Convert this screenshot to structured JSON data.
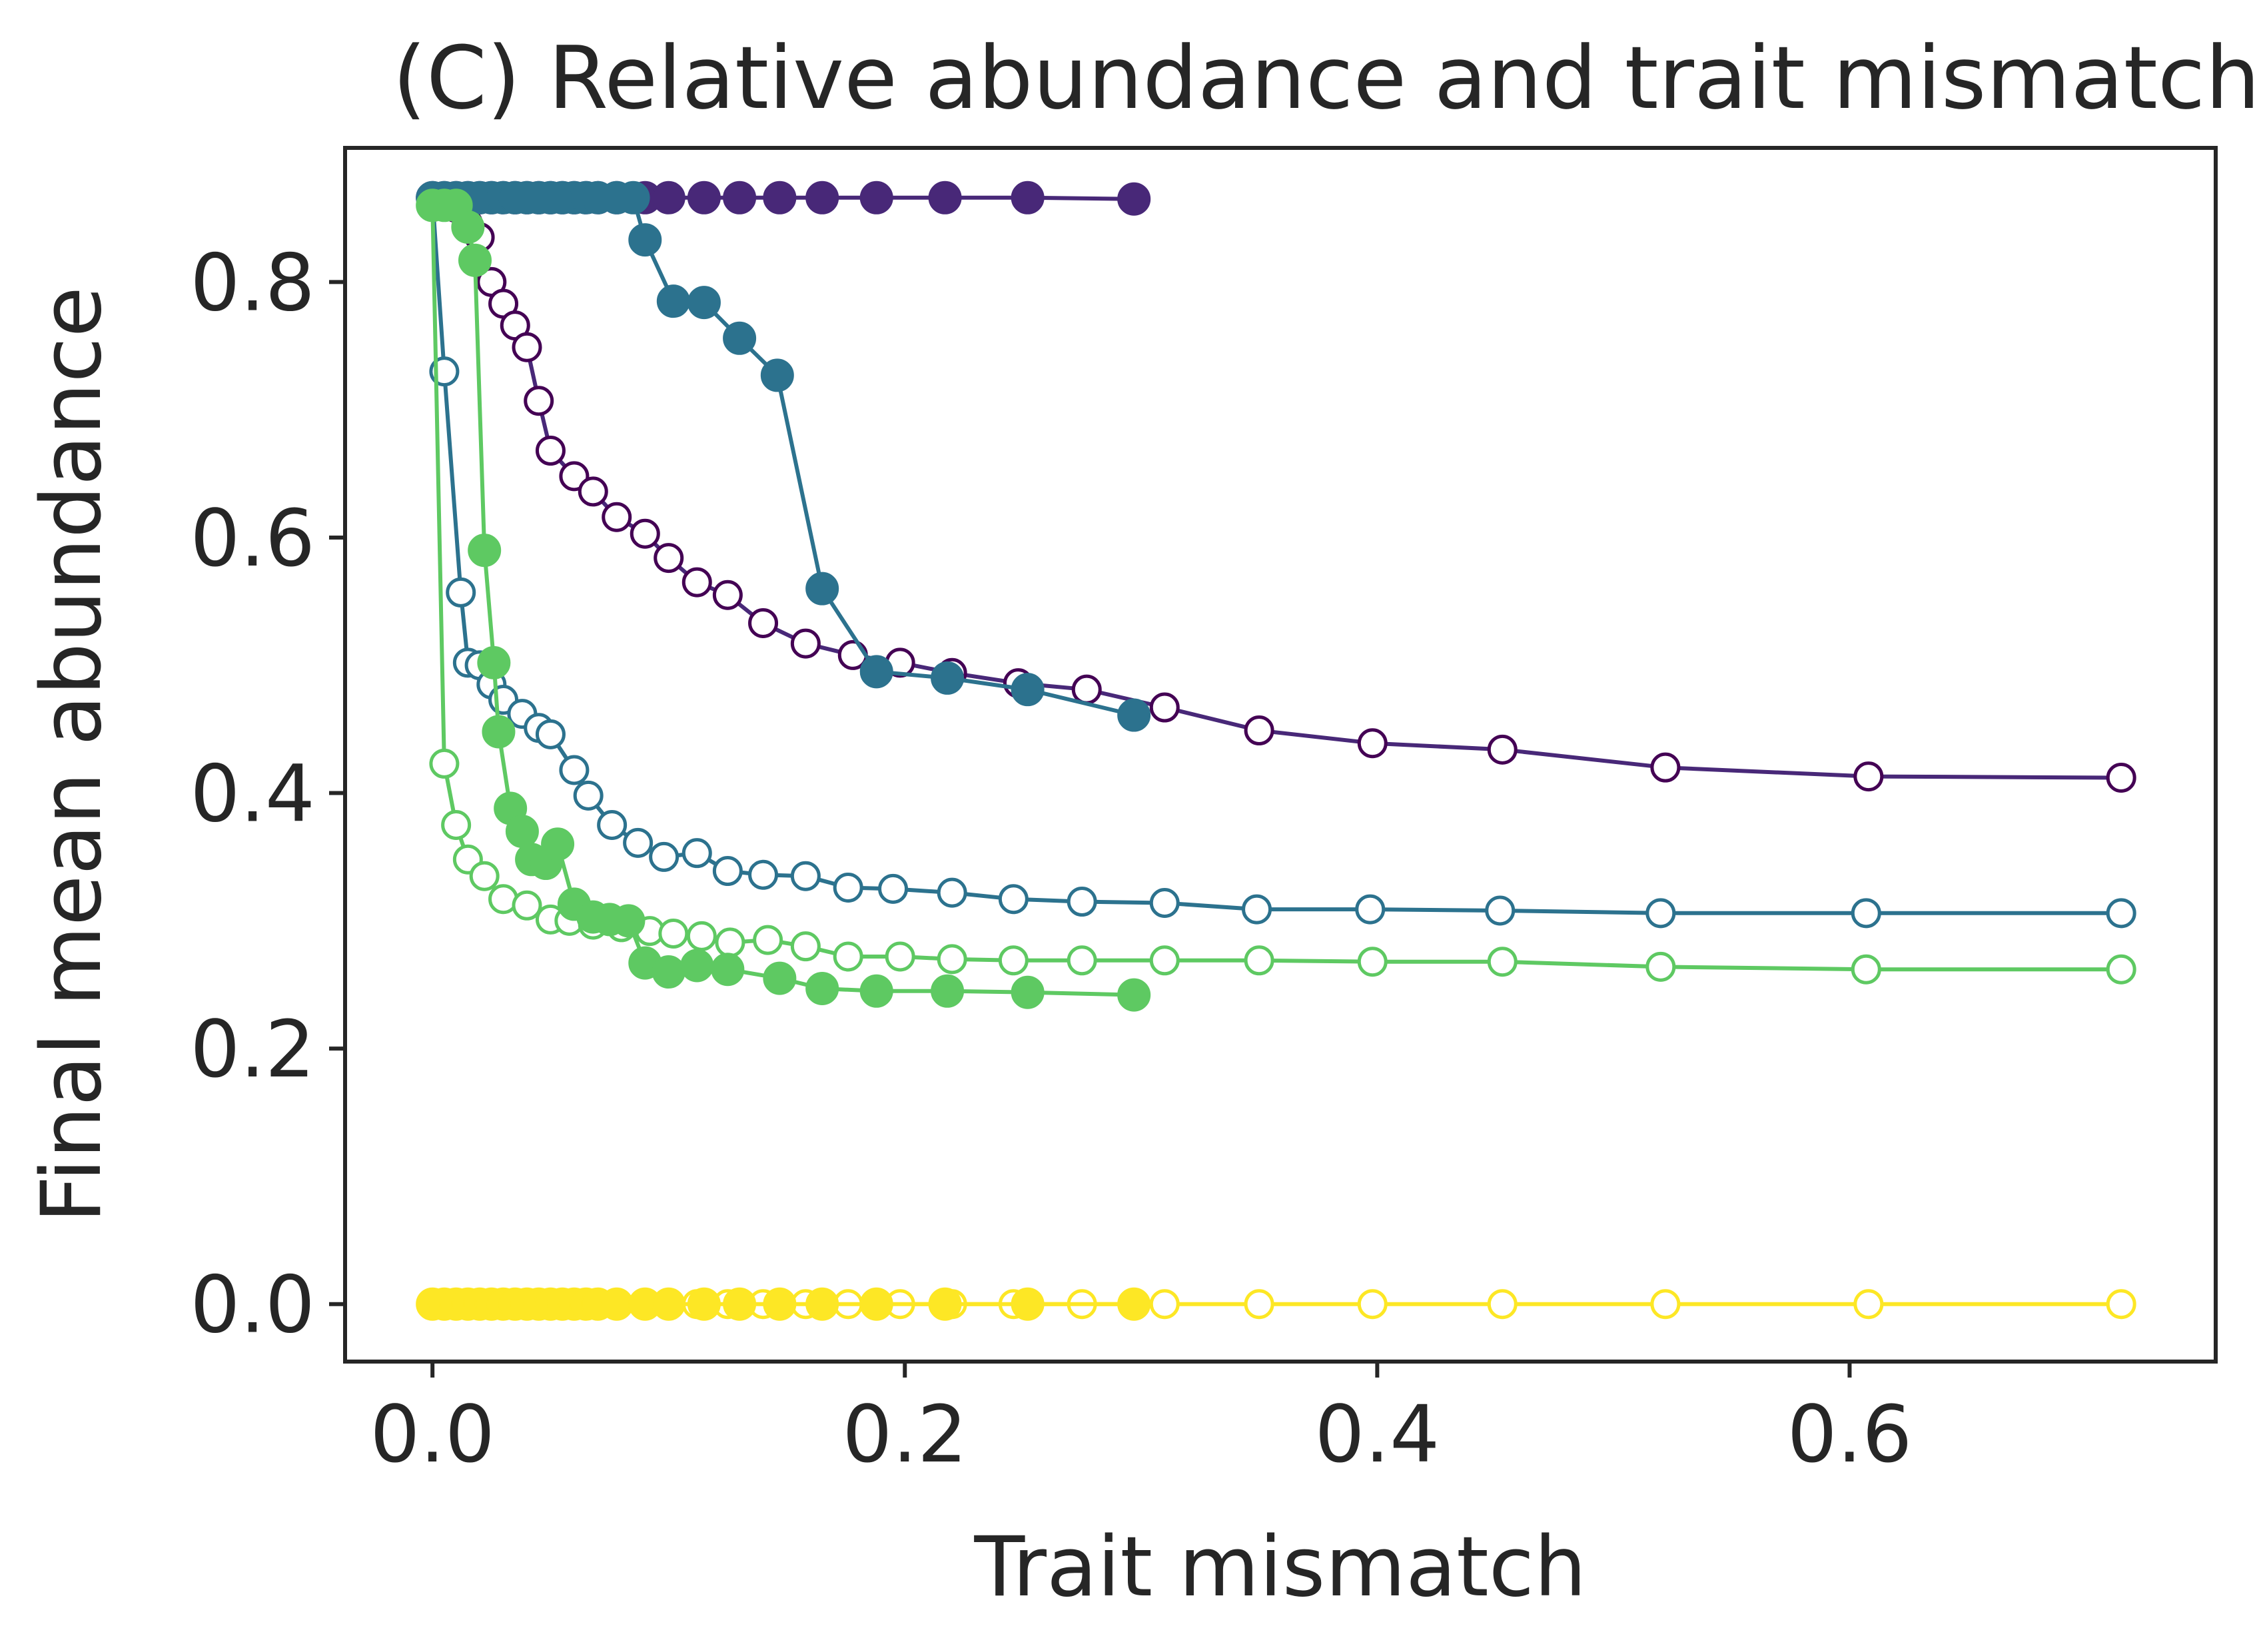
{
  "chart_data": {
    "type": "line",
    "title": "(C) Relative abundance and trait mismatch",
    "xlabel": "Trait mismatch",
    "ylabel": "Final mean abundance",
    "xlim": [
      -0.037,
      0.755
    ],
    "ylim": [
      -0.045,
      0.905
    ],
    "xticks": [
      0.0,
      0.2,
      0.4,
      0.6
    ],
    "xtick_labels": [
      "0.0",
      "0.2",
      "0.4",
      "0.6"
    ],
    "yticks": [
      0.0,
      0.2,
      0.4,
      0.6,
      0.8
    ],
    "ytick_labels": [
      "0.0",
      "0.2",
      "0.4",
      "0.6",
      "0.8"
    ],
    "grid": false,
    "legend": "none",
    "series": [
      {
        "color": "#440154",
        "line_color": "#482878",
        "marker": "open",
        "points": [
          [
            0.0,
            0.866
          ],
          [
            0.005,
            0.862
          ],
          [
            0.01,
            0.858
          ],
          [
            0.015,
            0.846
          ],
          [
            0.02,
            0.835
          ],
          [
            0.025,
            0.8
          ],
          [
            0.03,
            0.783
          ],
          [
            0.035,
            0.766
          ],
          [
            0.04,
            0.749
          ],
          [
            0.045,
            0.707
          ],
          [
            0.05,
            0.668
          ],
          [
            0.06,
            0.648
          ],
          [
            0.068,
            0.636
          ],
          [
            0.078,
            0.616
          ],
          [
            0.09,
            0.603
          ],
          [
            0.1,
            0.584
          ],
          [
            0.112,
            0.565
          ],
          [
            0.125,
            0.555
          ],
          [
            0.14,
            0.533
          ],
          [
            0.158,
            0.517
          ],
          [
            0.178,
            0.508
          ],
          [
            0.198,
            0.502
          ],
          [
            0.22,
            0.494
          ],
          [
            0.248,
            0.486
          ],
          [
            0.277,
            0.481
          ],
          [
            0.31,
            0.467
          ],
          [
            0.35,
            0.449
          ],
          [
            0.398,
            0.439
          ],
          [
            0.453,
            0.434
          ],
          [
            0.522,
            0.42
          ],
          [
            0.608,
            0.413
          ],
          [
            0.715,
            0.412
          ]
        ]
      },
      {
        "color": "#482878",
        "marker": "filled",
        "points": [
          [
            0.0,
            0.866
          ],
          [
            0.005,
            0.866
          ],
          [
            0.01,
            0.866
          ],
          [
            0.015,
            0.866
          ],
          [
            0.02,
            0.866
          ],
          [
            0.025,
            0.866
          ],
          [
            0.03,
            0.866
          ],
          [
            0.035,
            0.866
          ],
          [
            0.04,
            0.866
          ],
          [
            0.045,
            0.866
          ],
          [
            0.05,
            0.866
          ],
          [
            0.055,
            0.866
          ],
          [
            0.06,
            0.866
          ],
          [
            0.065,
            0.866
          ],
          [
            0.07,
            0.866
          ],
          [
            0.078,
            0.866
          ],
          [
            0.09,
            0.866
          ],
          [
            0.1,
            0.866
          ],
          [
            0.115,
            0.866
          ],
          [
            0.13,
            0.866
          ],
          [
            0.147,
            0.866
          ],
          [
            0.165,
            0.866
          ],
          [
            0.188,
            0.866
          ],
          [
            0.217,
            0.866
          ],
          [
            0.252,
            0.866
          ],
          [
            0.297,
            0.865
          ]
        ]
      },
      {
        "color": "#2c728e",
        "marker": "open",
        "points": [
          [
            0.0,
            0.866
          ],
          [
            0.005,
            0.73
          ],
          [
            0.012,
            0.557
          ],
          [
            0.015,
            0.502
          ],
          [
            0.02,
            0.5
          ],
          [
            0.025,
            0.485
          ],
          [
            0.03,
            0.473
          ],
          [
            0.038,
            0.462
          ],
          [
            0.045,
            0.451
          ],
          [
            0.05,
            0.446
          ],
          [
            0.06,
            0.418
          ],
          [
            0.066,
            0.398
          ],
          [
            0.076,
            0.375
          ],
          [
            0.087,
            0.361
          ],
          [
            0.098,
            0.35
          ],
          [
            0.112,
            0.353
          ],
          [
            0.125,
            0.339
          ],
          [
            0.14,
            0.336
          ],
          [
            0.158,
            0.335
          ],
          [
            0.176,
            0.326
          ],
          [
            0.195,
            0.325
          ],
          [
            0.22,
            0.322
          ],
          [
            0.246,
            0.317
          ],
          [
            0.275,
            0.315
          ],
          [
            0.31,
            0.314
          ],
          [
            0.349,
            0.309
          ],
          [
            0.397,
            0.309
          ],
          [
            0.452,
            0.308
          ],
          [
            0.52,
            0.306
          ],
          [
            0.607,
            0.306
          ],
          [
            0.715,
            0.306
          ]
        ]
      },
      {
        "color": "#2c728e",
        "marker": "filled",
        "points": [
          [
            0.0,
            0.866
          ],
          [
            0.005,
            0.866
          ],
          [
            0.01,
            0.866
          ],
          [
            0.015,
            0.866
          ],
          [
            0.02,
            0.866
          ],
          [
            0.025,
            0.866
          ],
          [
            0.03,
            0.866
          ],
          [
            0.035,
            0.866
          ],
          [
            0.04,
            0.866
          ],
          [
            0.045,
            0.866
          ],
          [
            0.05,
            0.866
          ],
          [
            0.055,
            0.866
          ],
          [
            0.06,
            0.866
          ],
          [
            0.065,
            0.866
          ],
          [
            0.07,
            0.866
          ],
          [
            0.078,
            0.866
          ],
          [
            0.085,
            0.866
          ],
          [
            0.09,
            0.833
          ],
          [
            0.102,
            0.785
          ],
          [
            0.115,
            0.784
          ],
          [
            0.13,
            0.756
          ],
          [
            0.146,
            0.727
          ],
          [
            0.165,
            0.56
          ],
          [
            0.188,
            0.495
          ],
          [
            0.218,
            0.49
          ],
          [
            0.252,
            0.481
          ],
          [
            0.297,
            0.461
          ]
        ]
      },
      {
        "color": "#5ec962",
        "marker": "open",
        "points": [
          [
            0.0,
            0.86
          ],
          [
            0.005,
            0.423
          ],
          [
            0.01,
            0.375
          ],
          [
            0.015,
            0.348
          ],
          [
            0.022,
            0.335
          ],
          [
            0.03,
            0.317
          ],
          [
            0.04,
            0.312
          ],
          [
            0.05,
            0.301
          ],
          [
            0.058,
            0.3
          ],
          [
            0.068,
            0.297
          ],
          [
            0.08,
            0.295
          ],
          [
            0.092,
            0.292
          ],
          [
            0.102,
            0.29
          ],
          [
            0.114,
            0.288
          ],
          [
            0.126,
            0.283
          ],
          [
            0.142,
            0.285
          ],
          [
            0.158,
            0.28
          ],
          [
            0.176,
            0.272
          ],
          [
            0.198,
            0.272
          ],
          [
            0.22,
            0.27
          ],
          [
            0.246,
            0.269
          ],
          [
            0.275,
            0.269
          ],
          [
            0.31,
            0.269
          ],
          [
            0.35,
            0.269
          ],
          [
            0.398,
            0.268
          ],
          [
            0.453,
            0.268
          ],
          [
            0.52,
            0.264
          ],
          [
            0.607,
            0.262
          ],
          [
            0.715,
            0.262
          ]
        ]
      },
      {
        "color": "#5ec962",
        "marker": "filled",
        "points": [
          [
            0.0,
            0.86
          ],
          [
            0.005,
            0.86
          ],
          [
            0.01,
            0.86
          ],
          [
            0.015,
            0.843
          ],
          [
            0.018,
            0.817
          ],
          [
            0.022,
            0.59
          ],
          [
            0.026,
            0.502
          ],
          [
            0.028,
            0.448
          ],
          [
            0.033,
            0.388
          ],
          [
            0.038,
            0.37
          ],
          [
            0.042,
            0.348
          ],
          [
            0.048,
            0.345
          ],
          [
            0.053,
            0.36
          ],
          [
            0.06,
            0.313
          ],
          [
            0.068,
            0.303
          ],
          [
            0.075,
            0.301
          ],
          [
            0.083,
            0.3
          ],
          [
            0.09,
            0.267
          ],
          [
            0.1,
            0.26
          ],
          [
            0.112,
            0.265
          ],
          [
            0.125,
            0.262
          ],
          [
            0.147,
            0.255
          ],
          [
            0.165,
            0.247
          ],
          [
            0.188,
            0.245
          ],
          [
            0.218,
            0.245
          ],
          [
            0.252,
            0.244
          ],
          [
            0.297,
            0.242
          ]
        ]
      },
      {
        "color": "#fde725",
        "marker": "open",
        "points": [
          [
            0.0,
            0.0
          ],
          [
            0.005,
            0.0
          ],
          [
            0.01,
            0.0
          ],
          [
            0.015,
            0.0
          ],
          [
            0.02,
            0.0
          ],
          [
            0.025,
            0.0
          ],
          [
            0.03,
            0.0
          ],
          [
            0.035,
            0.0
          ],
          [
            0.04,
            0.0
          ],
          [
            0.045,
            0.0
          ],
          [
            0.05,
            0.0
          ],
          [
            0.06,
            0.0
          ],
          [
            0.068,
            0.0
          ],
          [
            0.078,
            0.0
          ],
          [
            0.09,
            0.0
          ],
          [
            0.1,
            0.0
          ],
          [
            0.112,
            0.0
          ],
          [
            0.125,
            0.0
          ],
          [
            0.14,
            0.0
          ],
          [
            0.158,
            0.0
          ],
          [
            0.176,
            0.0
          ],
          [
            0.198,
            0.0
          ],
          [
            0.22,
            0.0
          ],
          [
            0.246,
            0.0
          ],
          [
            0.275,
            0.0
          ],
          [
            0.31,
            0.0
          ],
          [
            0.35,
            0.0
          ],
          [
            0.398,
            0.0
          ],
          [
            0.453,
            0.0
          ],
          [
            0.522,
            0.0
          ],
          [
            0.608,
            0.0
          ],
          [
            0.715,
            0.0
          ]
        ]
      },
      {
        "color": "#fde725",
        "marker": "filled",
        "points": [
          [
            0.0,
            0.0
          ],
          [
            0.005,
            0.0
          ],
          [
            0.01,
            0.0
          ],
          [
            0.015,
            0.0
          ],
          [
            0.02,
            0.0
          ],
          [
            0.025,
            0.0
          ],
          [
            0.03,
            0.0
          ],
          [
            0.035,
            0.0
          ],
          [
            0.04,
            0.0
          ],
          [
            0.045,
            0.0
          ],
          [
            0.05,
            0.0
          ],
          [
            0.055,
            0.0
          ],
          [
            0.06,
            0.0
          ],
          [
            0.065,
            0.0
          ],
          [
            0.07,
            0.0
          ],
          [
            0.078,
            0.0
          ],
          [
            0.09,
            0.0
          ],
          [
            0.1,
            0.0
          ],
          [
            0.115,
            0.0
          ],
          [
            0.13,
            0.0
          ],
          [
            0.147,
            0.0
          ],
          [
            0.165,
            0.0
          ],
          [
            0.188,
            0.0
          ],
          [
            0.217,
            0.0
          ],
          [
            0.252,
            0.0
          ],
          [
            0.297,
            0.0
          ]
        ]
      }
    ]
  }
}
